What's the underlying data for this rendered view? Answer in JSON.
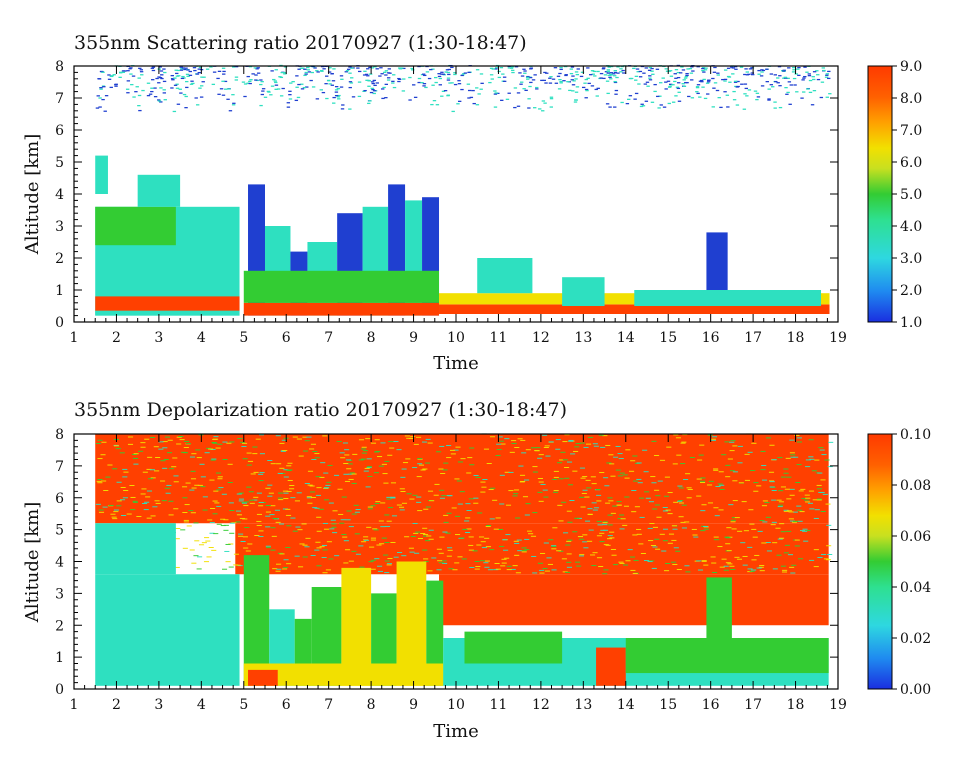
{
  "chart_data": [
    {
      "type": "heatmap",
      "title": "355nm Scattering ratio  20170927 (1:30-18:47)",
      "xlabel": "Time",
      "ylabel": "Altitude [km]",
      "xlim": [
        1,
        19
      ],
      "ylim": [
        0,
        8
      ],
      "x_ticks": [
        "1",
        "2",
        "3",
        "4",
        "5",
        "6",
        "7",
        "8",
        "9",
        "10",
        "11",
        "12",
        "13",
        "14",
        "15",
        "16",
        "17",
        "18",
        "19"
      ],
      "y_ticks": [
        "0",
        "1",
        "2",
        "3",
        "4",
        "5",
        "6",
        "7",
        "8"
      ],
      "colorbar": {
        "range": [
          1.0,
          9.0
        ],
        "ticks": [
          "1.0",
          "2.0",
          "3.0",
          "4.0",
          "5.0",
          "6.0",
          "7.0",
          "8.0",
          "9.0"
        ]
      },
      "data_time_range": [
        1.5,
        18.78
      ],
      "colors": {
        "low": "#1f3fd0",
        "mid": "#2ee0c0",
        "green": "#33cc33",
        "yellow": "#f2e000",
        "high": "#ff4000"
      }
    },
    {
      "type": "heatmap",
      "title": "355nm Depolarization ratio  20170927 (1:30-18:47)",
      "xlabel": "Time",
      "ylabel": "Altitude [km]",
      "xlim": [
        1,
        19
      ],
      "ylim": [
        0,
        8
      ],
      "x_ticks": [
        "1",
        "2",
        "3",
        "4",
        "5",
        "6",
        "7",
        "8",
        "9",
        "10",
        "11",
        "12",
        "13",
        "14",
        "15",
        "16",
        "17",
        "18",
        "19"
      ],
      "y_ticks": [
        "0",
        "1",
        "2",
        "3",
        "4",
        "5",
        "6",
        "7",
        "8"
      ],
      "colorbar": {
        "range": [
          0.0,
          0.1
        ],
        "ticks": [
          "0.00",
          "0.02",
          "0.04",
          "0.06",
          "0.08",
          "0.10"
        ]
      },
      "data_time_range": [
        1.5,
        18.78
      ],
      "colors": {
        "low": "#1f3fd0",
        "mid": "#2ee0c0",
        "green": "#33cc33",
        "yellow": "#f2e000",
        "high": "#ff4000"
      }
    }
  ]
}
